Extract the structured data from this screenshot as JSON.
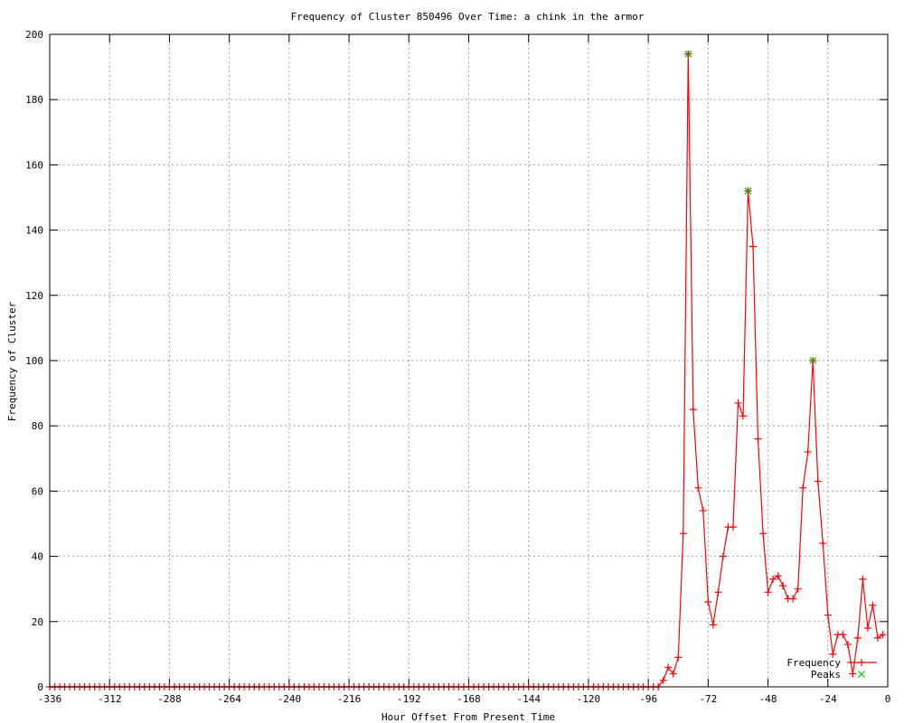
{
  "chart_data": {
    "type": "line",
    "title": "Frequency of Cluster 850496 Over Time: a chink in the armor",
    "xlabel": "Hour Offset From Present Time",
    "ylabel": "Frequency of Cluster",
    "xlim": [
      -336,
      0
    ],
    "ylim": [
      0,
      200
    ],
    "xticks": [
      -336,
      -312,
      -288,
      -264,
      -240,
      -216,
      -192,
      -168,
      -144,
      -120,
      -96,
      -72,
      -48,
      -24,
      0
    ],
    "yticks": [
      0,
      20,
      40,
      60,
      80,
      100,
      120,
      140,
      160,
      180,
      200
    ],
    "grid": true,
    "legend_position": "bottom-right",
    "series": [
      {
        "name": "Frequency",
        "color": "#ff0000",
        "marker": "plus",
        "x": [
          -336,
          -334,
          -332,
          -330,
          -328,
          -326,
          -324,
          -322,
          -320,
          -318,
          -316,
          -314,
          -312,
          -310,
          -308,
          -306,
          -304,
          -302,
          -300,
          -298,
          -296,
          -294,
          -292,
          -290,
          -288,
          -286,
          -284,
          -282,
          -280,
          -278,
          -276,
          -274,
          -272,
          -270,
          -268,
          -266,
          -264,
          -262,
          -260,
          -258,
          -256,
          -254,
          -252,
          -250,
          -248,
          -246,
          -244,
          -242,
          -240,
          -238,
          -236,
          -234,
          -232,
          -230,
          -228,
          -226,
          -224,
          -222,
          -220,
          -218,
          -216,
          -214,
          -212,
          -210,
          -208,
          -206,
          -204,
          -202,
          -200,
          -198,
          -196,
          -194,
          -192,
          -190,
          -188,
          -186,
          -184,
          -182,
          -180,
          -178,
          -176,
          -174,
          -172,
          -170,
          -168,
          -166,
          -164,
          -162,
          -160,
          -158,
          -156,
          -154,
          -152,
          -150,
          -148,
          -146,
          -144,
          -142,
          -140,
          -138,
          -136,
          -134,
          -132,
          -130,
          -128,
          -126,
          -124,
          -122,
          -120,
          -118,
          -116,
          -114,
          -112,
          -110,
          -108,
          -106,
          -104,
          -102,
          -100,
          -98,
          -96,
          -94,
          -92,
          -90,
          -88,
          -86,
          -84,
          -82,
          -80,
          -78,
          -76,
          -74,
          -72,
          -70,
          -68,
          -66,
          -64,
          -62,
          -60,
          -58,
          -56,
          -54,
          -52,
          -50,
          -48,
          -46,
          -44,
          -42,
          -40,
          -38,
          -36,
          -34,
          -32,
          -30,
          -28,
          -26,
          -24,
          -22,
          -20,
          -18,
          -16,
          -14,
          -12,
          -10,
          -8,
          -6,
          -4,
          -2
        ],
        "y": [
          0,
          0,
          0,
          0,
          0,
          0,
          0,
          0,
          0,
          0,
          0,
          0,
          0,
          0,
          0,
          0,
          0,
          0,
          0,
          0,
          0,
          0,
          0,
          0,
          0,
          0,
          0,
          0,
          0,
          0,
          0,
          0,
          0,
          0,
          0,
          0,
          0,
          0,
          0,
          0,
          0,
          0,
          0,
          0,
          0,
          0,
          0,
          0,
          0,
          0,
          0,
          0,
          0,
          0,
          0,
          0,
          0,
          0,
          0,
          0,
          0,
          0,
          0,
          0,
          0,
          0,
          0,
          0,
          0,
          0,
          0,
          0,
          0,
          0,
          0,
          0,
          0,
          0,
          0,
          0,
          0,
          0,
          0,
          0,
          0,
          0,
          0,
          0,
          0,
          0,
          0,
          0,
          0,
          0,
          0,
          0,
          0,
          0,
          0,
          0,
          0,
          0,
          0,
          0,
          0,
          0,
          0,
          0,
          0,
          0,
          0,
          0,
          0,
          0,
          0,
          0,
          0,
          0,
          0,
          0,
          0,
          0,
          0,
          2,
          6,
          4,
          9,
          47,
          194,
          85,
          61,
          54,
          26,
          19,
          29,
          40,
          49,
          49,
          87,
          83,
          152,
          135,
          76,
          47,
          29,
          33,
          34,
          31,
          27,
          27,
          30,
          61,
          72,
          100,
          63,
          44,
          22,
          10,
          16,
          16,
          13,
          4,
          15,
          33,
          18,
          25,
          15,
          16
        ]
      },
      {
        "name": "Peaks",
        "color": "#00c000",
        "marker": "x",
        "x": [
          -80,
          -56,
          -30
        ],
        "y": [
          194,
          152,
          100
        ]
      }
    ]
  }
}
